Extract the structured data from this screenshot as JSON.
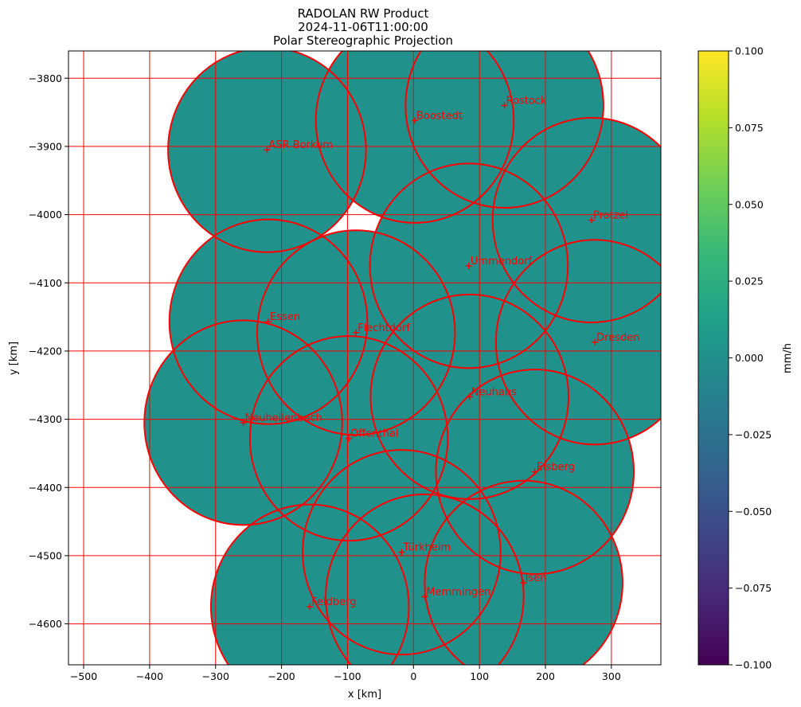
{
  "chart_data": {
    "type": "map",
    "title_lines": [
      "RADOLAN RW Product",
      "2024-11-06T11:00:00",
      "Polar Stereographic Projection"
    ],
    "xlabel": "x [km]",
    "ylabel": "y [km]",
    "xlim": [
      -523,
      375
    ],
    "ylim": [
      -4660,
      -3760
    ],
    "x_ticks": [
      -500,
      -400,
      -300,
      -200,
      -100,
      0,
      100,
      200,
      300
    ],
    "y_ticks": [
      -3800,
      -3900,
      -4000,
      -4100,
      -4200,
      -4300,
      -4400,
      -4500,
      -4600
    ],
    "x_tick_labels": [
      "−500",
      "−400",
      "−300",
      "−200",
      "−100",
      "0",
      "100",
      "200",
      "300"
    ],
    "y_tick_labels": [
      "−3800",
      "−3900",
      "−4000",
      "−4100",
      "−4200",
      "−4300",
      "−4400",
      "−4500",
      "−4600"
    ],
    "grid": true,
    "grid_color": "#ff0000",
    "fill_color": "#21918c",
    "range_km": 150,
    "radars": [
      {
        "name": "ASR Borkum",
        "x": -222,
        "y": -3905
      },
      {
        "name": "Boostedt",
        "x": 2,
        "y": -3862
      },
      {
        "name": "Rostock",
        "x": 138,
        "y": -3840
      },
      {
        "name": "Protzel",
        "x": 270,
        "y": -4008
      },
      {
        "name": "Ummendorf",
        "x": 84,
        "y": -4075
      },
      {
        "name": "Essen",
        "x": -220,
        "y": -4157
      },
      {
        "name": "Flechtdorf",
        "x": -87,
        "y": -4173
      },
      {
        "name": "Dresden",
        "x": 275,
        "y": -4187
      },
      {
        "name": "Neuhaus",
        "x": 85,
        "y": -4267
      },
      {
        "name": "Neuheilenbach",
        "x": -258,
        "y": -4305
      },
      {
        "name": "Offenthal",
        "x": -98,
        "y": -4328
      },
      {
        "name": "Eisberg",
        "x": 184,
        "y": -4377
      },
      {
        "name": "Türkheim",
        "x": -18,
        "y": -4495
      },
      {
        "name": "Isen",
        "x": 167,
        "y": -4540
      },
      {
        "name": "Memmingen",
        "x": 17,
        "y": -4560
      },
      {
        "name": "Feldberg",
        "x": -157,
        "y": -4575
      }
    ],
    "colorbar": {
      "label": "mm/h",
      "min": -0.1,
      "max": 0.1,
      "ticks": [
        0.1,
        0.075,
        0.05,
        0.025,
        0.0,
        -0.025,
        -0.05,
        -0.075,
        -0.1
      ],
      "tick_labels": [
        "0.100",
        "0.075",
        "0.050",
        "0.025",
        "0.000",
        "−0.025",
        "−0.050",
        "−0.075",
        "−0.100"
      ],
      "colors": [
        "#440154",
        "#482878",
        "#3e4989",
        "#31688e",
        "#26828e",
        "#1f9e89",
        "#35b779",
        "#6ece58",
        "#b5de2b",
        "#fde725"
      ]
    }
  }
}
